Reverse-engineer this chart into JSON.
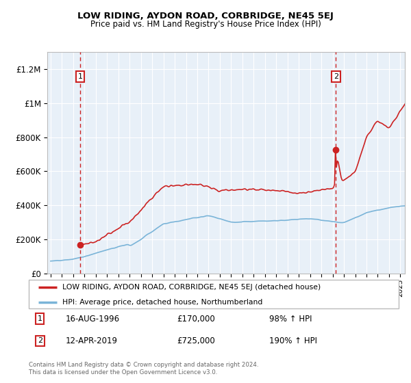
{
  "title": "LOW RIDING, AYDON ROAD, CORBRIDGE, NE45 5EJ",
  "subtitle": "Price paid vs. HM Land Registry's House Price Index (HPI)",
  "legend_line1": "LOW RIDING, AYDON ROAD, CORBRIDGE, NE45 5EJ (detached house)",
  "legend_line2": "HPI: Average price, detached house, Northumberland",
  "footer": "Contains HM Land Registry data © Crown copyright and database right 2024.\nThis data is licensed under the Open Government Licence v3.0.",
  "hpi_color": "#7ab4d8",
  "price_color": "#cc2222",
  "annotation_color": "#cc2222",
  "bg_color": "#e8f0f8",
  "ylim_max": 1300000,
  "ylim_min": 0,
  "xlim_min": 1993.7,
  "xlim_max": 2025.4,
  "yticks": [
    0,
    200000,
    400000,
    600000,
    800000,
    1000000,
    1200000
  ],
  "ytick_labels": [
    "£0",
    "£200K",
    "£400K",
    "£600K",
    "£800K",
    "£1M",
    "£1.2M"
  ],
  "ann1_x": 1996.62,
  "ann1_y": 170000,
  "ann2_x": 2019.28,
  "ann2_y": 725000
}
